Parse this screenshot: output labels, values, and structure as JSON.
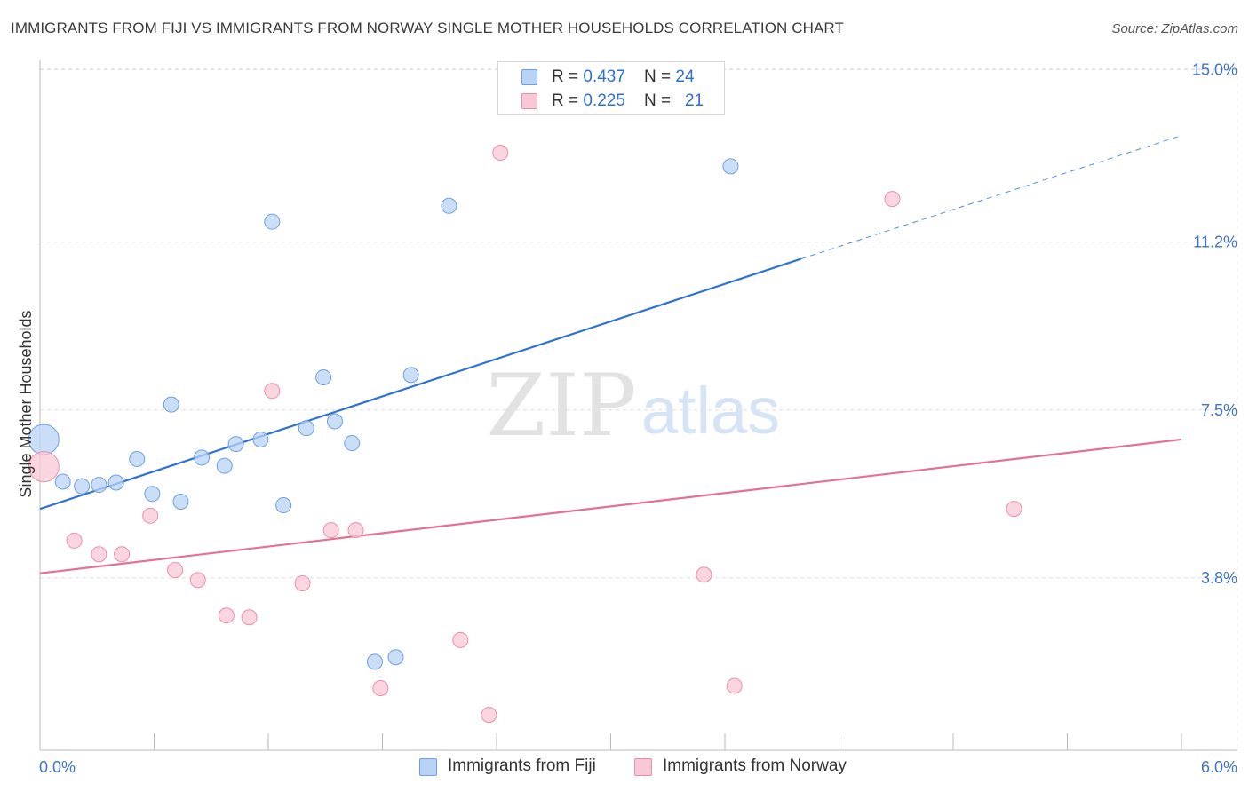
{
  "title": "IMMIGRANTS FROM FIJI VS IMMIGRANTS FROM NORWAY SINGLE MOTHER HOUSEHOLDS CORRELATION CHART",
  "source": "Source: ZipAtlas.com",
  "watermark": {
    "zip": "ZIP",
    "atlas": "atlas"
  },
  "legend_top": [
    {
      "r_label": "R = ",
      "r_value": "0.437",
      "n_label": "N = ",
      "n_value": "24",
      "color": "#b9d3f5",
      "border": "#6f9fe0"
    },
    {
      "r_label": "R = ",
      "r_value": "0.225",
      "n_label": "N = ",
      "n_value": "21",
      "color": "#f9c8d6",
      "border": "#ea8fab"
    }
  ],
  "chart_data": {
    "type": "scatter",
    "title": "IMMIGRANTS FROM FIJI VS IMMIGRANTS FROM NORWAY SINGLE MOTHER HOUSEHOLDS CORRELATION CHART",
    "xlabel": "",
    "ylabel": "Single Mother Households",
    "xlim": [
      0.0,
      6.0
    ],
    "ylim": [
      0.0,
      15.6
    ],
    "x_tick_labels": [
      {
        "value": 0.0,
        "label": "0.0%"
      },
      {
        "value": 6.0,
        "label": "6.0%"
      }
    ],
    "y_ticks": [
      {
        "value": 3.8,
        "label": "3.8%"
      },
      {
        "value": 7.5,
        "label": "7.5%"
      },
      {
        "value": 11.2,
        "label": "11.2%"
      },
      {
        "value": 15.0,
        "label": "15.0%"
      }
    ],
    "x_minor_ticks": [
      0.0,
      0.6,
      1.2,
      1.8,
      2.4,
      3.0,
      3.6,
      4.2,
      4.8,
      5.4,
      6.0
    ],
    "series": [
      {
        "name": "Immigrants from Fiji",
        "color": "#b9d3f5",
        "edge": "#6f9fe0",
        "line_color": "#2f72d2",
        "trend": {
          "x0": 0.0,
          "y0": 5.32,
          "x1": 4.0,
          "y1": 10.83,
          "x_ext": 6.0,
          "y_ext": 13.55
        },
        "points": [
          {
            "x": 0.02,
            "y": 6.85,
            "big": true
          },
          {
            "x": 0.12,
            "y": 5.92
          },
          {
            "x": 0.22,
            "y": 5.82
          },
          {
            "x": 0.31,
            "y": 5.85
          },
          {
            "x": 0.4,
            "y": 5.9
          },
          {
            "x": 0.51,
            "y": 6.42
          },
          {
            "x": 0.59,
            "y": 5.65
          },
          {
            "x": 0.69,
            "y": 7.62
          },
          {
            "x": 0.74,
            "y": 5.48
          },
          {
            "x": 0.85,
            "y": 6.45
          },
          {
            "x": 0.97,
            "y": 6.27
          },
          {
            "x": 1.03,
            "y": 6.75
          },
          {
            "x": 1.16,
            "y": 6.85
          },
          {
            "x": 1.22,
            "y": 11.65
          },
          {
            "x": 1.28,
            "y": 5.4
          },
          {
            "x": 1.4,
            "y": 7.1
          },
          {
            "x": 1.49,
            "y": 8.22
          },
          {
            "x": 1.55,
            "y": 7.25
          },
          {
            "x": 1.64,
            "y": 6.77
          },
          {
            "x": 1.76,
            "y": 1.95
          },
          {
            "x": 1.87,
            "y": 2.05
          },
          {
            "x": 1.95,
            "y": 8.27
          },
          {
            "x": 2.15,
            "y": 12.0
          },
          {
            "x": 3.63,
            "y": 12.87
          }
        ]
      },
      {
        "name": "Immigrants from Norway",
        "color": "#f9c8d6",
        "edge": "#ea8fab",
        "line_color": "#e46f97",
        "trend": {
          "x0": 0.0,
          "y0": 3.9,
          "x1": 6.0,
          "y1": 6.85
        },
        "points": [
          {
            "x": 0.02,
            "y": 6.25,
            "big": true
          },
          {
            "x": 0.18,
            "y": 4.62
          },
          {
            "x": 0.31,
            "y": 4.32
          },
          {
            "x": 0.43,
            "y": 4.32
          },
          {
            "x": 0.58,
            "y": 5.17
          },
          {
            "x": 0.71,
            "y": 3.97
          },
          {
            "x": 0.83,
            "y": 3.75
          },
          {
            "x": 0.98,
            "y": 2.97
          },
          {
            "x": 1.1,
            "y": 2.93
          },
          {
            "x": 1.22,
            "y": 7.92
          },
          {
            "x": 1.38,
            "y": 3.68
          },
          {
            "x": 1.53,
            "y": 4.85
          },
          {
            "x": 1.66,
            "y": 4.85
          },
          {
            "x": 1.79,
            "y": 1.37
          },
          {
            "x": 2.21,
            "y": 2.43
          },
          {
            "x": 2.36,
            "y": 0.78
          },
          {
            "x": 2.42,
            "y": 13.17
          },
          {
            "x": 3.49,
            "y": 3.87
          },
          {
            "x": 3.65,
            "y": 1.42
          },
          {
            "x": 4.48,
            "y": 12.15
          },
          {
            "x": 5.12,
            "y": 5.32
          }
        ]
      }
    ]
  },
  "legend_bottom": [
    {
      "label": "Immigrants from Fiji",
      "color": "#b9d3f5",
      "border": "#6f9fe0"
    },
    {
      "label": "Immigrants from Norway",
      "color": "#f9c8d6",
      "border": "#ea8fab"
    }
  ]
}
